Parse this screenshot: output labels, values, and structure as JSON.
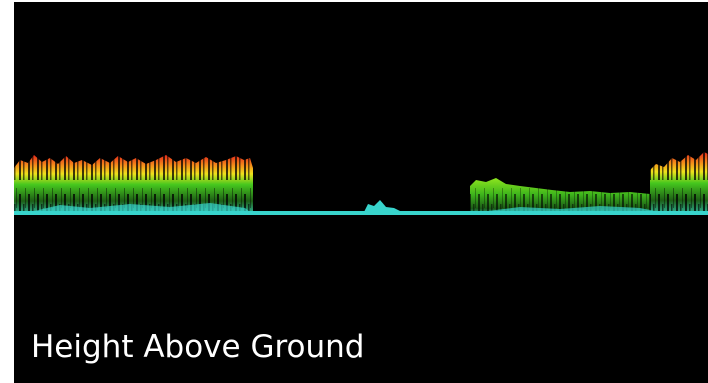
{
  "caption": "Height Above Ground"
}
